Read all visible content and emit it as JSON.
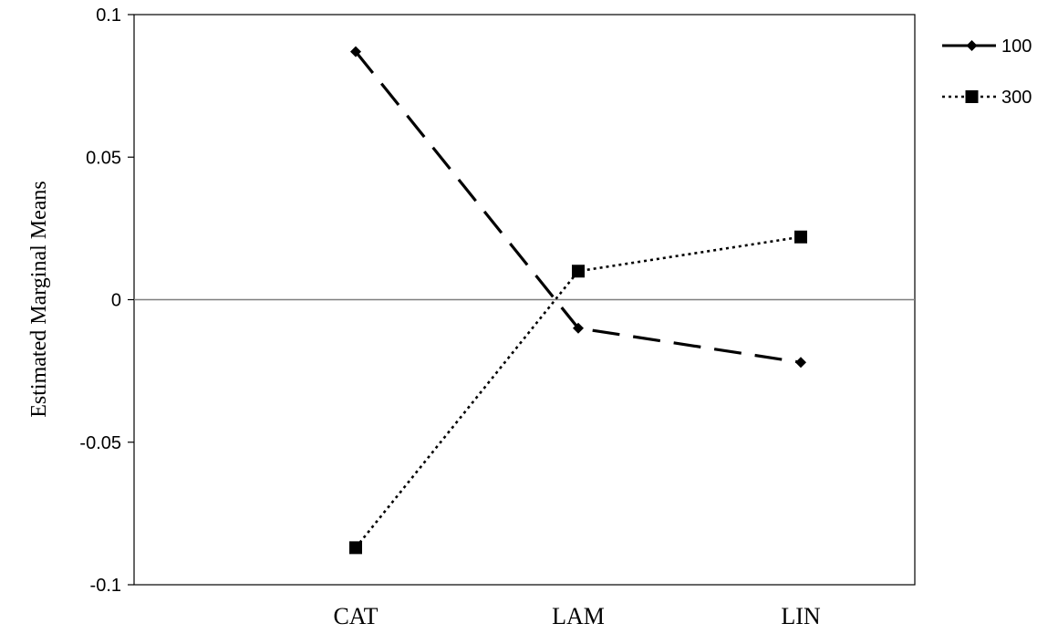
{
  "chart_data": {
    "type": "line",
    "title": "",
    "xlabel": "",
    "ylabel": "Estimated Marginal Means",
    "categories": [
      "CAT",
      "LAM",
      "LIN"
    ],
    "ylim": [
      -0.1,
      0.1
    ],
    "yticks": [
      0.1,
      0.05,
      0,
      -0.05,
      -0.1
    ],
    "ytick_labels": [
      "0.1",
      "0.05",
      "0",
      "-0.05",
      "-0.1"
    ],
    "grid": false,
    "zero_line": true,
    "legend_position": "right",
    "series": [
      {
        "name": "100",
        "values": [
          0.087,
          -0.01,
          -0.022
        ],
        "line_style": "dashed",
        "marker": "diamond",
        "color": "#000000"
      },
      {
        "name": "300",
        "values": [
          -0.087,
          0.01,
          0.022
        ],
        "line_style": "dotted",
        "marker": "square",
        "color": "#000000"
      }
    ],
    "zero_line_color": "#7f7f7f"
  }
}
